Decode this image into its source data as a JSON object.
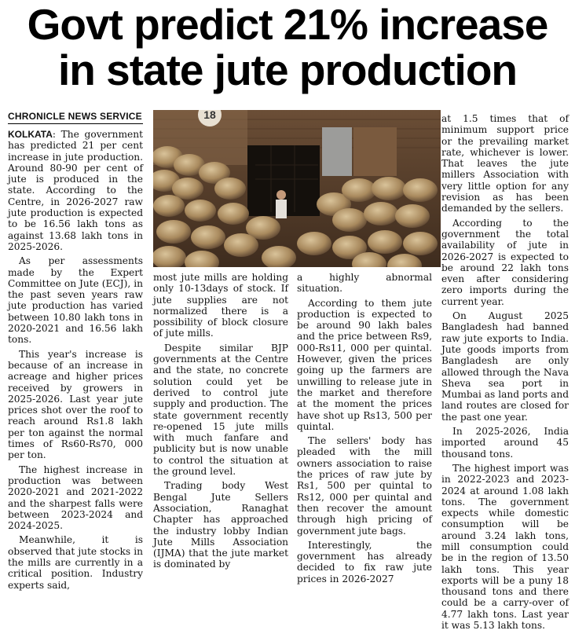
{
  "headline": {
    "line1": "Govt predict 21% increase",
    "line2": "in state jute production"
  },
  "byline": "CHRONICLE NEWS SERVICE",
  "photo": {
    "sign_number": "18"
  },
  "col1": {
    "dateline": "KOLKATA",
    "p1": ": The government has predicted 21 per cent increase in jute production. Around 80-90 per cent of jute is produced in the state. According to the Centre, in 2026-2027 raw jute production is expected to be 16.56 lakh tons as against 13.68 lakh tons in 2025-2026.",
    "p2": "As per assessments made by the Expert Committee on Jute (ECJ), in the past seven years raw jute production has varied between 10.80 lakh tons in 2020-2021 and 16.56 lakh tons.",
    "p3": "This year's increase is because of an increase in acreage and higher prices received by growers in 2025-2026. Last year jute prices shot over the roof to reach around Rs1.8 lakh per ton against the normal times of Rs60-Rs70, 000 per ton.",
    "p4": "The highest increase in production was between 2020-2021 and 2021-2022 and the sharpest falls were between 2023-2024 and 2024-2025.",
    "p5": "Meanwhile, it is observed that jute stocks in the mills are currently in a critical position. Industry experts said,"
  },
  "col2": {
    "p1": "most jute mills are holding only 10-13days of stock. If jute supplies are not normalized there is a possibility of block closure of jute mills.",
    "p2": "Despite similar BJP governments at the Centre and the state, no concrete solution could yet be derived to control jute supply and production. The state government recently re-opened 15 jute mills with much fanfare and publicity but is now unable to control the situation at the ground level.",
    "p3": "Trading body West Bengal Jute Sellers Association, Ranaghat Chapter has approached the industry lobby Indian Jute Mills Association (IJMA) that the jute market is dominated by"
  },
  "col3": {
    "p1": "a highly abnormal situation.",
    "p2": "According to them jute production is expected to be around 90 lakh bales and the price between Rs9, 000-Rs11, 000 per quintal. However, given the prices going up the farmers are unwilling to release jute in the market and therefore at the moment the prices have shot up Rs13, 500 per quintal.",
    "p3": "The sellers' body has pleaded with the mill owners association to raise the prices of raw jute by Rs1, 500 per quintal to Rs12, 000 per quintal and then recover the amount through high pricing of government jute bags.",
    "p4": "Interestingly, the government has already decided to fix raw jute prices in 2026-2027"
  },
  "col4": {
    "p1": "at 1.5 times that of minimum support price or the prevailing market rate, whichever is lower. That leaves the jute millers Association with very little option for any revision as has been demanded by the sellers.",
    "p2": "According to the government the total availability of jute in 2026-2027 is expected to be around 22 lakh tons even after considering zero imports during the current year.",
    "p3": "On August 2025 Bangladesh had banned raw jute exports to India. Jute goods imports from Bangladesh are only allowed through the Nava Sheva sea port in Mumbai as land ports and land routes are closed for the past one year.",
    "p4": "In 2025-2026, India imported around 45 thousand tons.",
    "p5": "The highest import was in 2022-2023 and 2023-2024 at around 1.08 lakh tons. The government expects while domestic consumption will be around 3.24 lakh tons, mill consumption could be in the region of 13.50 lakh tons. This year exports will be a puny 18 thousand tons and there could be a carry-over of 4.77 lakh tons. Last year it was 5.13 lakh tons."
  }
}
